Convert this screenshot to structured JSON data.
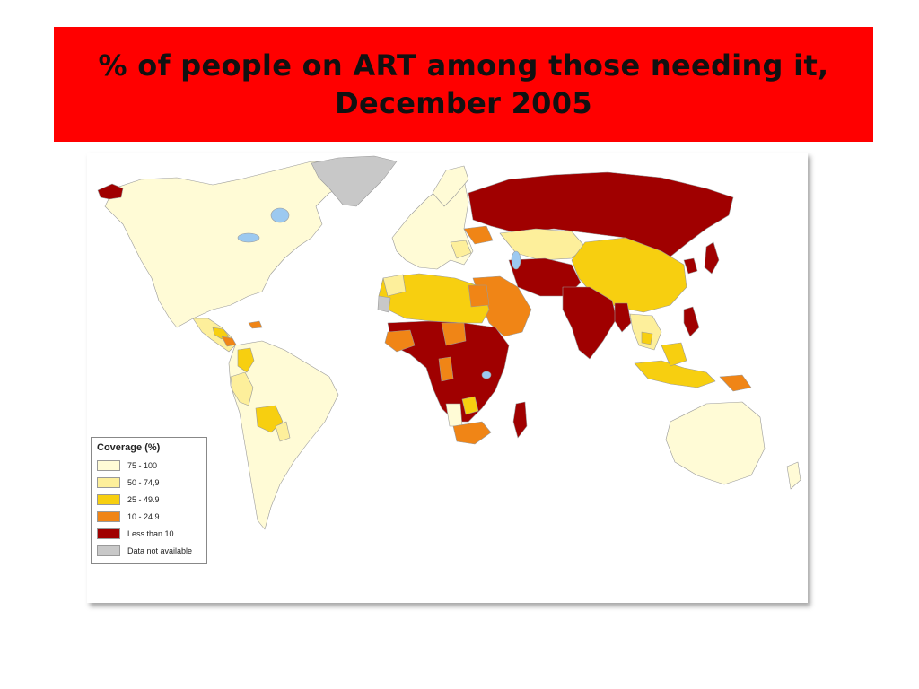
{
  "title": {
    "line1": "% of people on ART among those needing it,",
    "line2": "December 2005"
  },
  "legend": {
    "title": "Coverage (%)",
    "items": [
      {
        "label": "75 - 100",
        "color": "#fffbd6"
      },
      {
        "label": "50 - 74,9",
        "color": "#fdef9b"
      },
      {
        "label": "25 - 49.9",
        "color": "#f7cf10"
      },
      {
        "label": "10 - 24.9",
        "color": "#f08516"
      },
      {
        "label": "Less than 10",
        "color": "#a00000"
      },
      {
        "label": "Data not available",
        "color": "#c8c8c8"
      }
    ]
  },
  "colors": {
    "banner": "#ff0000",
    "water": "#9cc9f0",
    "border": "#9a9a9a"
  }
}
